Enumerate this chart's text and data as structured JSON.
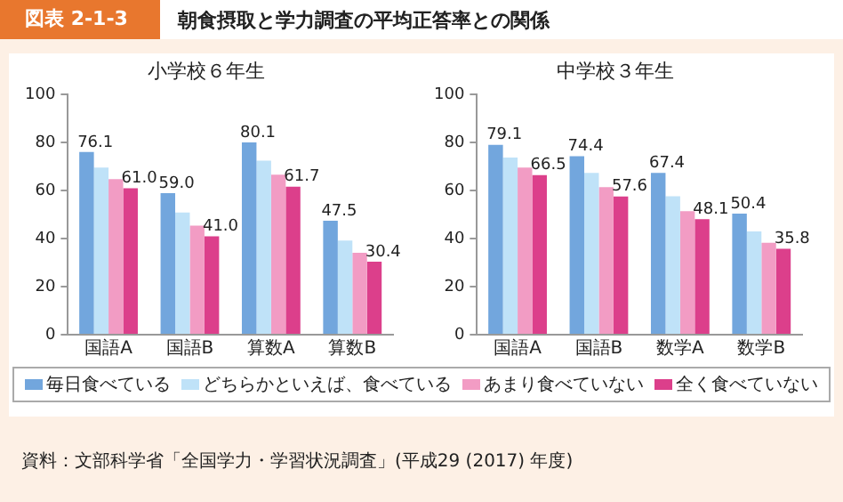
{
  "chart_data": [
    {
      "type": "bar",
      "title": "朝食摂取と学力調査の平均正答率との関係",
      "subtitle": "小学校６年生",
      "annotations": [
        "図表 2-1-3",
        "資料：文部科学省「全国学力・学習状況調査」(平成29 (2017) 年度)"
      ],
      "categories": [
        "国語A",
        "国語B",
        "算数A",
        "算数B"
      ],
      "ylim": [
        0,
        100
      ],
      "yticks": [
        0,
        20,
        40,
        60,
        80,
        100
      ],
      "grid": false,
      "legend": "bottom",
      "series": [
        {
          "name": "毎日食べている",
          "color": "#72a6dd",
          "values": [
            76.1,
            59.0,
            80.1,
            47.5
          ],
          "value_labels": [
            "76.1",
            "59.0",
            "80.1",
            "47.5"
          ]
        },
        {
          "name": "どちらかといえば、食べている",
          "color": "#bfe2f8",
          "values": [
            69.6,
            50.9,
            72.5,
            39.2
          ]
        },
        {
          "name": "あまり食べていない",
          "color": "#f29cc4",
          "values": [
            64.8,
            45.4,
            66.7,
            34.1
          ]
        },
        {
          "name": "全く食べていない",
          "color": "#dc3f8b",
          "values": [
            61.0,
            41.0,
            61.7,
            30.4
          ],
          "value_labels": [
            "61.0",
            "41.0",
            "61.7",
            "30.4"
          ]
        }
      ]
    },
    {
      "type": "bar",
      "title": "中学校３年生",
      "categories": [
        "国語A",
        "国語B",
        "数学A",
        "数学B"
      ],
      "ylim": [
        0,
        100
      ],
      "yticks": [
        0,
        20,
        40,
        60,
        80,
        100
      ],
      "grid": false,
      "series": [
        {
          "color": "#72a6dd",
          "values": [
            79.1,
            74.4,
            67.4,
            50.4
          ],
          "value_labels": [
            "79.1",
            "74.4",
            "67.4",
            "50.4"
          ]
        },
        {
          "color": "#bfe2f8",
          "values": [
            73.8,
            67.4,
            57.7,
            43.0
          ]
        },
        {
          "color": "#f29cc4",
          "values": [
            69.6,
            61.5,
            51.5,
            38.3
          ]
        },
        {
          "color": "#dc3f8b",
          "values": [
            66.5,
            57.6,
            48.1,
            35.8
          ],
          "value_labels": [
            "66.5",
            "57.6",
            "48.1",
            "35.8"
          ]
        }
      ]
    }
  ]
}
